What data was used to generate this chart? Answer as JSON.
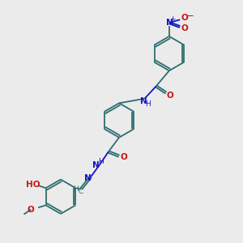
{
  "bg_color": "#ebebeb",
  "bond_color": "#2d6e6e",
  "n_color": "#1414cc",
  "o_color": "#cc1414",
  "text_color": "#2d6e6e",
  "figsize": [
    3.0,
    3.0
  ],
  "dpi": 100,
  "xlim": [
    0,
    10
  ],
  "ylim": [
    0,
    10
  ],
  "lw": 1.3,
  "fs": 7.5,
  "fs_small": 6.5,
  "ring_r": 0.72
}
